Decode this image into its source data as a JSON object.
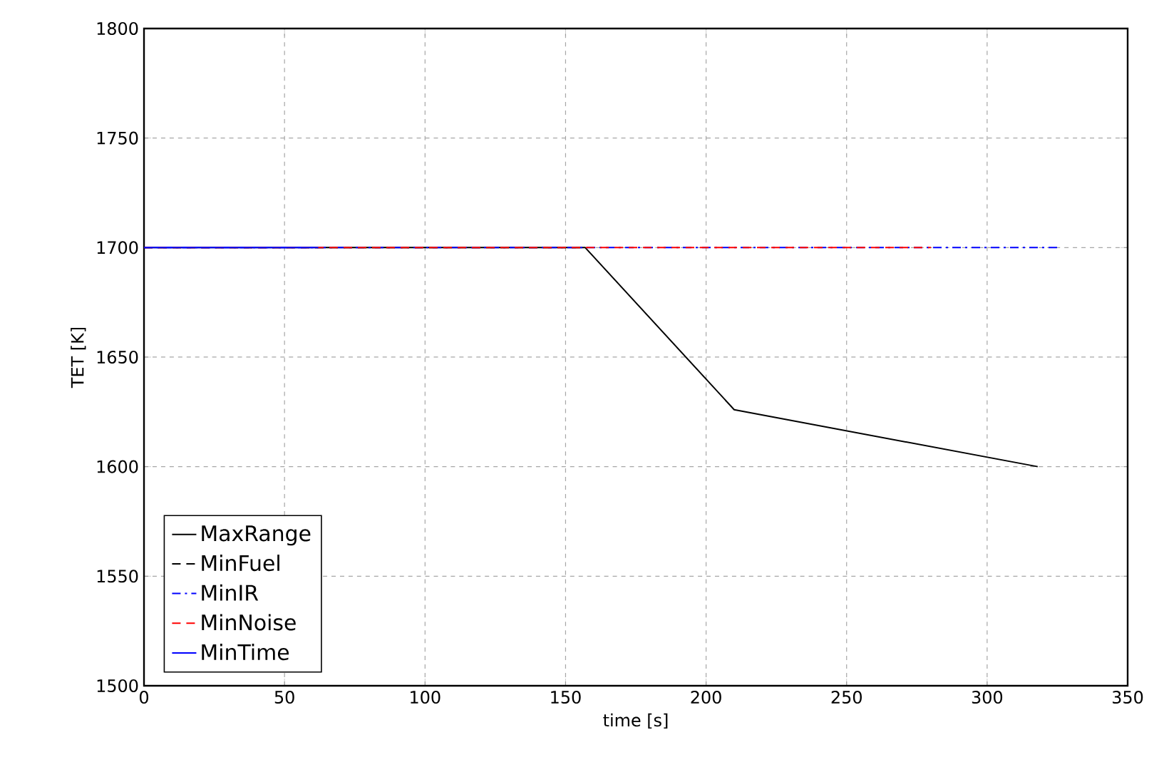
{
  "chart_data": {
    "type": "line",
    "xlabel": "time [s]",
    "ylabel": "TET [K]",
    "xlim": [
      0,
      350
    ],
    "ylim": [
      1500,
      1800
    ],
    "xticks": [
      0,
      50,
      100,
      150,
      200,
      250,
      300,
      350
    ],
    "yticks": [
      1500,
      1550,
      1600,
      1650,
      1700,
      1750,
      1800
    ],
    "grid": true,
    "legend": "bottom left",
    "series": [
      {
        "name": "MaxRange",
        "color": "#000000",
        "line_style": "solid",
        "x": [
          0,
          157,
          210,
          318
        ],
        "values": [
          1700,
          1700,
          1626,
          1600
        ]
      },
      {
        "name": "MinFuel",
        "color": "#000000",
        "line_style": "dashed",
        "x": [
          0,
          156
        ],
        "values": [
          1700,
          1700
        ]
      },
      {
        "name": "MinIR",
        "color": "#0000ff",
        "line_style": "dashdot",
        "x": [
          0,
          326
        ],
        "values": [
          1700,
          1700
        ]
      },
      {
        "name": "MinNoise",
        "color": "#ff0000",
        "line_style": "dashed",
        "x": [
          0,
          280
        ],
        "values": [
          1700,
          1700
        ]
      },
      {
        "name": "MinTime",
        "color": "#0000ff",
        "line_style": "solid",
        "x": [
          0,
          62
        ],
        "values": [
          1700,
          1700
        ]
      }
    ]
  }
}
